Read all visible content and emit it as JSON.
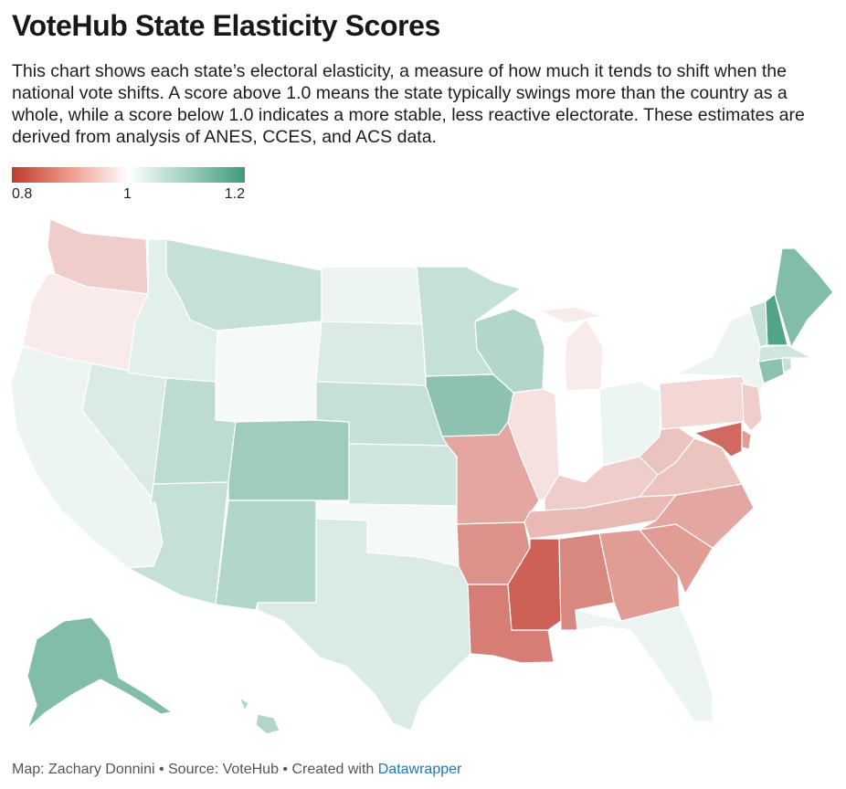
{
  "title": "VoteHub State Elasticity Scores",
  "description": "This chart shows each state’s electoral elasticity, a measure of how much it tends to shift when the national vote shifts. A score above 1.0 means the state typically swings more than the country as a whole, while a score below 1.0 indicates a more stable, less reactive electorate. These estimates are derived from analysis of ANES, CCES, and ACS data.",
  "legend": {
    "min_label": "0.8",
    "mid_label": "1",
    "max_label": "1.2"
  },
  "footer": {
    "credit": "Map: Zachary Donnini • Source: VoteHub • Created with ",
    "tool": "Datawrapper"
  },
  "colors": {
    "low": "#c0392b",
    "mid": "#ffffff",
    "high": "#3f9a7a"
  },
  "chart_data": {
    "type": "choropleth",
    "region": "United States",
    "value_label": "Elasticity",
    "scale": [
      0.8,
      1.0,
      1.2
    ],
    "states": [
      {
        "code": "WA",
        "value": 0.95
      },
      {
        "code": "OR",
        "value": 0.98
      },
      {
        "code": "CA",
        "value": 1.02
      },
      {
        "code": "NV",
        "value": 1.04
      },
      {
        "code": "ID",
        "value": 1.03
      },
      {
        "code": "MT",
        "value": 1.06
      },
      {
        "code": "WY",
        "value": 1.01
      },
      {
        "code": "UT",
        "value": 1.07
      },
      {
        "code": "AZ",
        "value": 1.06
      },
      {
        "code": "CO",
        "value": 1.1
      },
      {
        "code": "NM",
        "value": 1.08
      },
      {
        "code": "ND",
        "value": 1.02
      },
      {
        "code": "SD",
        "value": 1.04
      },
      {
        "code": "NE",
        "value": 1.06
      },
      {
        "code": "KS",
        "value": 1.05
      },
      {
        "code": "OK",
        "value": 1.01
      },
      {
        "code": "TX",
        "value": 1.04
      },
      {
        "code": "MN",
        "value": 1.06
      },
      {
        "code": "IA",
        "value": 1.12
      },
      {
        "code": "MO",
        "value": 0.91
      },
      {
        "code": "AR",
        "value": 0.89
      },
      {
        "code": "LA",
        "value": 0.87
      },
      {
        "code": "WI",
        "value": 1.08
      },
      {
        "code": "IL",
        "value": 0.97
      },
      {
        "code": "MI",
        "value": 0.98
      },
      {
        "code": "IN",
        "value": 1.0
      },
      {
        "code": "OH",
        "value": 1.02
      },
      {
        "code": "KY",
        "value": 0.95
      },
      {
        "code": "TN",
        "value": 0.93
      },
      {
        "code": "MS",
        "value": 0.84
      },
      {
        "code": "AL",
        "value": 0.88
      },
      {
        "code": "GA",
        "value": 0.9
      },
      {
        "code": "FL",
        "value": 1.02
      },
      {
        "code": "SC",
        "value": 0.9
      },
      {
        "code": "NC",
        "value": 0.91
      },
      {
        "code": "VA",
        "value": 0.94
      },
      {
        "code": "WV",
        "value": 0.94
      },
      {
        "code": "PA",
        "value": 0.96
      },
      {
        "code": "NY",
        "value": 1.02
      },
      {
        "code": "NJ",
        "value": 0.95
      },
      {
        "code": "DE",
        "value": 0.9
      },
      {
        "code": "MD",
        "value": 0.85
      },
      {
        "code": "CT",
        "value": 1.12
      },
      {
        "code": "RI",
        "value": 1.06
      },
      {
        "code": "MA",
        "value": 1.05
      },
      {
        "code": "VT",
        "value": 1.06
      },
      {
        "code": "NH",
        "value": 1.18
      },
      {
        "code": "ME",
        "value": 1.13
      },
      {
        "code": "AK",
        "value": 1.13
      },
      {
        "code": "HI",
        "value": 1.08
      }
    ]
  }
}
